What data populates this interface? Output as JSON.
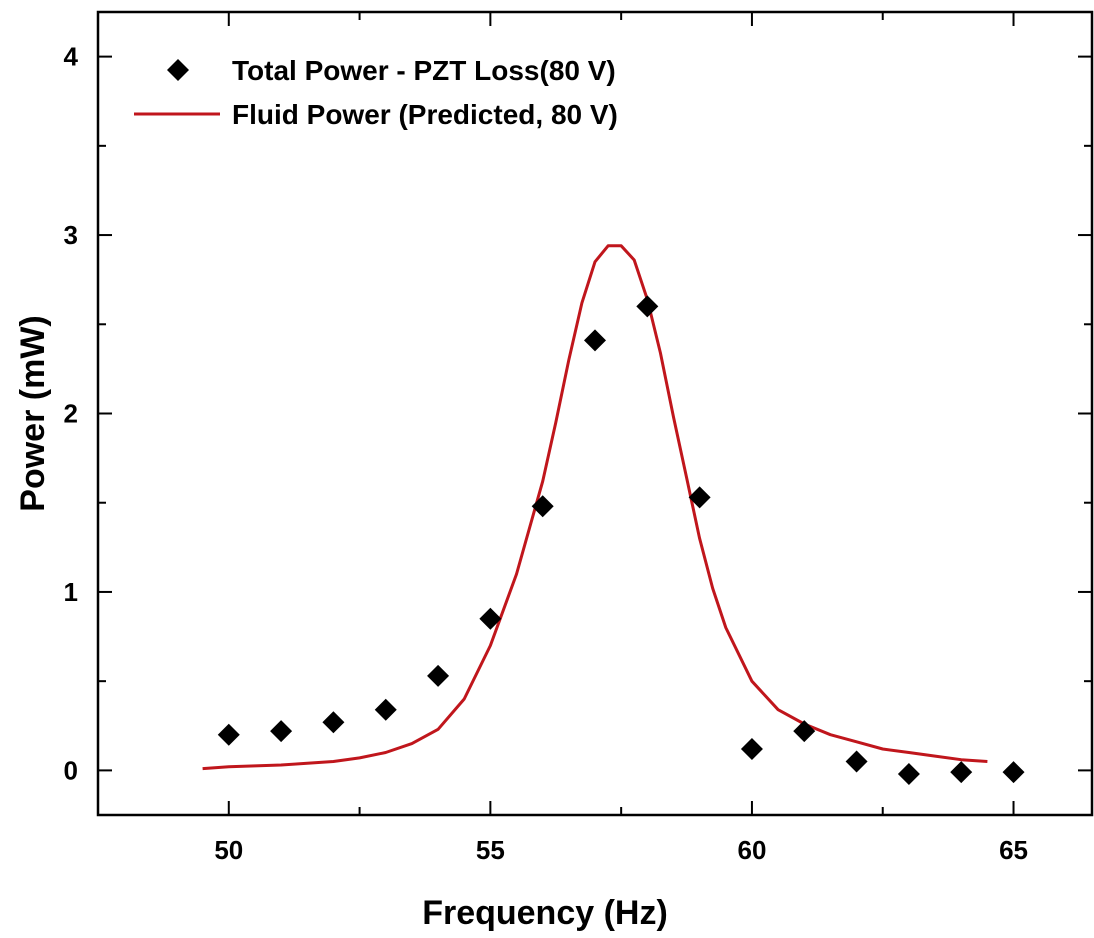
{
  "chart_data": {
    "type": "scatter",
    "xlabel": "Frequency (Hz)",
    "ylabel": "Power (mW)",
    "xlim": [
      47.5,
      66.5
    ],
    "ylim": [
      -0.25,
      4.25
    ],
    "xticks": [
      50,
      55,
      60,
      65
    ],
    "yticks": [
      0,
      1,
      2,
      3,
      4
    ],
    "grid": false,
    "legend_position": "top-left",
    "series": [
      {
        "name": "Total Power - PZT Loss(80 V)",
        "type": "scatter",
        "marker": "diamond",
        "color": "#000000",
        "x": [
          50,
          51,
          52,
          53,
          54,
          55,
          56,
          57,
          58,
          59,
          60,
          61,
          62,
          63,
          64,
          65
        ],
        "y": [
          0.2,
          0.22,
          0.27,
          0.34,
          0.53,
          0.85,
          1.48,
          2.41,
          2.6,
          1.53,
          0.12,
          0.22,
          0.05,
          -0.02,
          -0.01,
          -0.01
        ]
      },
      {
        "name": "Fluid Power (Predicted, 80 V)",
        "type": "line",
        "color": "#c0161c",
        "x": [
          49.5,
          50,
          50.5,
          51,
          51.5,
          52,
          52.5,
          53,
          53.5,
          54,
          54.5,
          55,
          55.5,
          56,
          56.25,
          56.5,
          56.75,
          57,
          57.25,
          57.5,
          57.75,
          58,
          58.25,
          58.5,
          58.75,
          59,
          59.25,
          59.5,
          60,
          60.5,
          61,
          61.5,
          62,
          62.5,
          63,
          63.5,
          64,
          64.5
        ],
        "y": [
          0.01,
          0.02,
          0.025,
          0.03,
          0.04,
          0.05,
          0.07,
          0.1,
          0.15,
          0.23,
          0.4,
          0.7,
          1.1,
          1.62,
          1.95,
          2.3,
          2.62,
          2.85,
          2.94,
          2.94,
          2.86,
          2.64,
          2.34,
          1.98,
          1.64,
          1.3,
          1.02,
          0.8,
          0.5,
          0.34,
          0.26,
          0.2,
          0.16,
          0.12,
          0.1,
          0.08,
          0.06,
          0.05
        ]
      }
    ]
  }
}
